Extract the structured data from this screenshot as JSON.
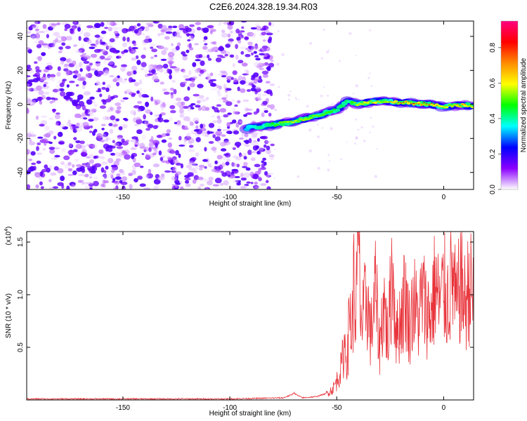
{
  "figure": {
    "title": "C2E6.2024.328.19.34.R03"
  },
  "colors": {
    "snr_line": "#e8343b",
    "axis": "#000000"
  },
  "colormap_stops": [
    "#ffffff",
    "#8b00ff",
    "#0000ff",
    "#00ffff",
    "#00ff00",
    "#ffff00",
    "#ff8c00",
    "#ff0000",
    "#ff0080"
  ],
  "chart_data": [
    {
      "type": "heatmap",
      "title": "",
      "xlabel": "Height of straight line (km)",
      "ylabel": "Frequency (Hz)",
      "xlim": [
        -195,
        14
      ],
      "ylim": [
        -50,
        49
      ],
      "xticks": [
        -150,
        -100,
        -50,
        0
      ],
      "yticks": [
        -40,
        -20,
        0,
        20,
        40
      ],
      "colorbar": {
        "label": "Normalized spectral amplitude",
        "range": [
          0.0,
          0.95
        ],
        "ticks": [
          "0.0",
          "0.2",
          "0.4",
          "0.6",
          "0.8"
        ]
      },
      "ridge": {
        "x": [
          -92,
          -80,
          -70,
          -60,
          -50,
          -45,
          -40,
          -30,
          -20,
          -10,
          0,
          10,
          14
        ],
        "y": [
          -14,
          -12,
          -10,
          -7,
          -3,
          2,
          0,
          2,
          1,
          0.5,
          -1,
          -0.5,
          -1
        ],
        "peak_amplitude": [
          0.35,
          0.5,
          0.6,
          0.55,
          0.5,
          0.45,
          0.6,
          0.7,
          0.8,
          0.95,
          0.7,
          0.8,
          0.6
        ]
      },
      "noise": {
        "x_range": [
          -195,
          -80
        ],
        "y_range": [
          -50,
          49
        ],
        "amplitude": 0.15
      }
    },
    {
      "type": "line",
      "title": "",
      "xlabel": "Height of straight line (km)",
      "ylabel": "SNR (10 * v/v)",
      "ylabel_scale": "(x10",
      "ylabel_scale_exp": "4",
      "ylabel_scale_close": ")",
      "xlim": [
        -195,
        14
      ],
      "ylim": [
        0,
        1.6
      ],
      "xticks": [
        -150,
        -100,
        -50,
        0
      ],
      "yticks": [
        "0.5",
        "1.0",
        "1.5"
      ],
      "series": [
        {
          "values_summary": "near zero baseline, bump near -70, rising to ~1.6 near -40, noisy 0.5-1.2 up to 14",
          "x": [
            -195,
            -150,
            -100,
            -75,
            -71,
            -70,
            -69,
            -66,
            -60,
            -55,
            -52,
            -50,
            -48,
            -46,
            -45,
            -44,
            -43,
            -42,
            -41,
            -40,
            -39,
            -38,
            -36,
            -34,
            -32,
            -30,
            -28,
            -26,
            -24,
            -22,
            -20,
            -18,
            -16,
            -14,
            -12,
            -10,
            -8,
            -6,
            -4,
            -2,
            0,
            2,
            4,
            6,
            8,
            10,
            12,
            14
          ],
          "y": [
            0.01,
            0.01,
            0.01,
            0.02,
            0.05,
            0.07,
            0.05,
            0.02,
            0.03,
            0.06,
            0.1,
            0.18,
            0.3,
            0.55,
            0.35,
            0.9,
            0.6,
            1.1,
            0.8,
            1.6,
            0.9,
            0.7,
            1.0,
            0.6,
            1.05,
            0.5,
            0.95,
            0.55,
            1.3,
            0.6,
            0.8,
            1.0,
            0.7,
            0.95,
            0.75,
            1.0,
            0.85,
            0.8,
            1.1,
            0.9,
            1.05,
            0.95,
            1.2,
            0.85,
            1.15,
            0.9,
            1.1,
            0.95
          ]
        }
      ]
    }
  ]
}
